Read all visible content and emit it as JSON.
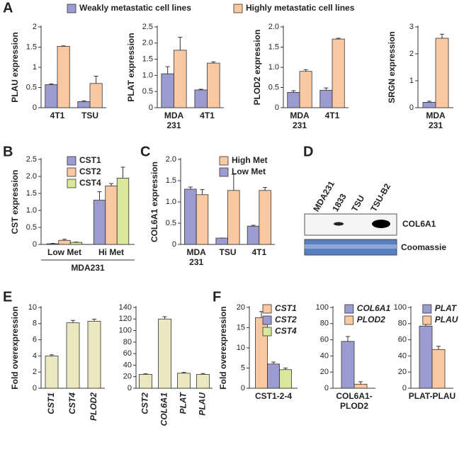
{
  "chart_data": [
    {
      "type": "bar",
      "panel": "A",
      "ylabel": "PLAU expression",
      "ylim": [
        0,
        2
      ],
      "yticks": [
        0,
        0.5,
        1,
        1.5,
        2
      ],
      "legend": "top-outside",
      "categories": [
        "4T1",
        "TSU"
      ],
      "series": [
        {
          "name": "Weakly metastatic cell lines",
          "color": "#9b9bcf",
          "values": [
            0.57,
            0.15
          ],
          "errors": [
            0.02,
            0.02
          ]
        },
        {
          "name": "Highly metastatic cell lines",
          "color": "#f9c8a0",
          "values": [
            1.52,
            0.6
          ],
          "errors": [
            0.01,
            0.18
          ]
        }
      ]
    },
    {
      "type": "bar",
      "ylabel": "PLAT expression",
      "ylim": [
        0,
        2.5
      ],
      "yticks": [
        0,
        0.5,
        {
          "value": 1,
          "label": "1.0"
        },
        1.5,
        {
          "value": 2,
          "label": "2.0"
        },
        2.5
      ],
      "categories": [
        [
          "MDA",
          "231"
        ],
        "4T1"
      ],
      "series": [
        {
          "color": "#9b9bcf",
          "values": [
            1.05,
            0.55
          ],
          "errors": [
            0.22,
            0.02
          ]
        },
        {
          "color": "#f9c8a0",
          "values": [
            1.78,
            1.38
          ],
          "errors": [
            0.4,
            0.04
          ]
        }
      ]
    },
    {
      "type": "bar",
      "ylabel": "PLOD2 expression",
      "ylim": [
        0,
        2
      ],
      "yticks": [
        0,
        0.5,
        {
          "value": 1,
          "label": "1.0"
        },
        1.5,
        {
          "value": 2,
          "label": "2.0"
        }
      ],
      "categories": [
        [
          "MDA",
          "231"
        ],
        "4T1"
      ],
      "series": [
        {
          "color": "#9b9bcf",
          "values": [
            0.38,
            0.43
          ],
          "errors": [
            0.04,
            0.06
          ]
        },
        {
          "color": "#f9c8a0",
          "values": [
            0.9,
            1.7
          ],
          "errors": [
            0.04,
            0.02
          ]
        }
      ]
    },
    {
      "type": "bar",
      "ylabel": "SRGN expression",
      "ylim": [
        0,
        3
      ],
      "yticks": [
        0,
        1,
        2,
        3
      ],
      "categories": [
        [
          "MDA",
          "231"
        ]
      ],
      "series": [
        {
          "color": "#9b9bcf",
          "values": [
            0.2
          ],
          "errors": [
            0.04
          ]
        },
        {
          "color": "#f9c8a0",
          "values": [
            2.58
          ],
          "errors": [
            0.15
          ]
        }
      ]
    },
    {
      "type": "bar",
      "panel": "B",
      "ylabel": "CST expression",
      "ylim": [
        0,
        2.5
      ],
      "yticks": [
        0,
        0.5,
        {
          "value": 1,
          "label": "1.0"
        },
        1.5,
        {
          "value": 2,
          "label": "2.0"
        },
        2.5
      ],
      "legend": "inside-left",
      "categories": [
        "Low Met",
        "Hi Met"
      ],
      "group_label": "MDA231",
      "series": [
        {
          "name": "CST1",
          "color": "#9b9bcf",
          "values": [
            0.02,
            1.3
          ],
          "errors": [
            0.01,
            0.25
          ]
        },
        {
          "name": "CST2",
          "color": "#f9c8a0",
          "values": [
            0.12,
            1.72
          ],
          "errors": [
            0.03,
            0.07
          ]
        },
        {
          "name": "CST4",
          "color": "#d9e89a",
          "values": [
            0.06,
            1.95
          ],
          "errors": [
            0.01,
            0.32
          ]
        }
      ]
    },
    {
      "type": "bar",
      "panel": "C",
      "ylabel": "COL6A1 expression",
      "ylim": [
        0,
        2
      ],
      "yticks": [
        0,
        0.5,
        {
          "value": 1,
          "label": "1.0"
        },
        1.5,
        {
          "value": 2,
          "label": "2.0"
        }
      ],
      "legend": "top-right",
      "legend_reverse": true,
      "categories": [
        [
          "MDA",
          "231"
        ],
        "TSU",
        "4T1"
      ],
      "series": [
        {
          "name": "Low Met",
          "color": "#9b9bcf",
          "values": [
            1.3,
            0.15,
            0.43
          ],
          "errors": [
            0.05,
            0,
            0.02
          ]
        },
        {
          "name": "High Met",
          "color": "#f9c8a0",
          "values": [
            1.17,
            1.27,
            1.27
          ],
          "errors": [
            0.12,
            0.38,
            0.07
          ]
        }
      ]
    },
    {
      "type": "bar",
      "panel": "E",
      "ylabel": "Fold overexpression",
      "ylim": [
        0,
        10
      ],
      "yticks": [
        0,
        2,
        4,
        6,
        8,
        10
      ],
      "italic": true,
      "rotate_labels": true,
      "categories": [
        "CST1",
        "CST4",
        "PLOD2"
      ],
      "series": [
        {
          "color": "#e9e8bf",
          "values": [
            4.0,
            8.1,
            8.3
          ],
          "errors": [
            0.15,
            0.3,
            0.25
          ]
        }
      ]
    },
    {
      "type": "bar",
      "ylim": [
        0,
        140
      ],
      "yticks": [
        0,
        20,
        40,
        60,
        80,
        100,
        120,
        140
      ],
      "italic": true,
      "rotate_labels": true,
      "categories": [
        "CST2",
        "COL6A1",
        "PLAT",
        "PLAU"
      ],
      "series": [
        {
          "color": "#e9e8bf",
          "values": [
            24,
            120,
            26,
            24
          ],
          "errors": [
            1,
            4,
            1.5,
            1.5
          ]
        }
      ]
    },
    {
      "type": "bar",
      "panel": "F",
      "ylabel": "Fold overexpression",
      "ylim": [
        0,
        20
      ],
      "yticks": [
        0,
        5,
        10,
        15,
        20
      ],
      "italic": true,
      "legend": "inside-left",
      "categories": [
        "CST1-2-4"
      ],
      "series": [
        {
          "name": "CST1",
          "color": "#f9c8a0",
          "values": [
            17.5
          ],
          "errors": [
            1.5
          ]
        },
        {
          "name": "CST2",
          "color": "#9b9bcf",
          "values": [
            6
          ],
          "errors": [
            0.5
          ]
        },
        {
          "name": "CST4",
          "color": "#d9e89a",
          "values": [
            4.6
          ],
          "errors": [
            0.4
          ]
        }
      ]
    },
    {
      "type": "bar",
      "ylim": [
        0,
        100
      ],
      "yticks": [
        0,
        20,
        40,
        60,
        80,
        100
      ],
      "italic": true,
      "legend": "inside-left",
      "categories": [
        [
          "COL6A1-",
          "PLOD2"
        ]
      ],
      "series": [
        {
          "name": "COL6A1",
          "color": "#9b9bcf",
          "values": [
            58
          ],
          "errors": [
            6
          ]
        },
        {
          "name": "PLOD2",
          "color": "#f9c8a0",
          "values": [
            5
          ],
          "errors": [
            3
          ]
        }
      ]
    },
    {
      "type": "bar",
      "ylim": [
        0,
        100
      ],
      "yticks": [
        0,
        20,
        40,
        60,
        80,
        100
      ],
      "italic": true,
      "legend": "inside-left",
      "categories": [
        "PLAT-PLAU"
      ],
      "series": [
        {
          "name": "PLAT",
          "color": "#9b9bcf",
          "values": [
            77
          ],
          "errors": [
            6
          ]
        },
        {
          "name": "PLAU",
          "color": "#f9c8a0",
          "values": [
            48
          ],
          "errors": [
            4
          ]
        }
      ]
    }
  ],
  "blot": {
    "panel": "D",
    "lanes": [
      "MDA231",
      "1833",
      "TSU",
      "TSU-B2"
    ],
    "rows": [
      "COL6A1",
      "Coomassie"
    ]
  }
}
